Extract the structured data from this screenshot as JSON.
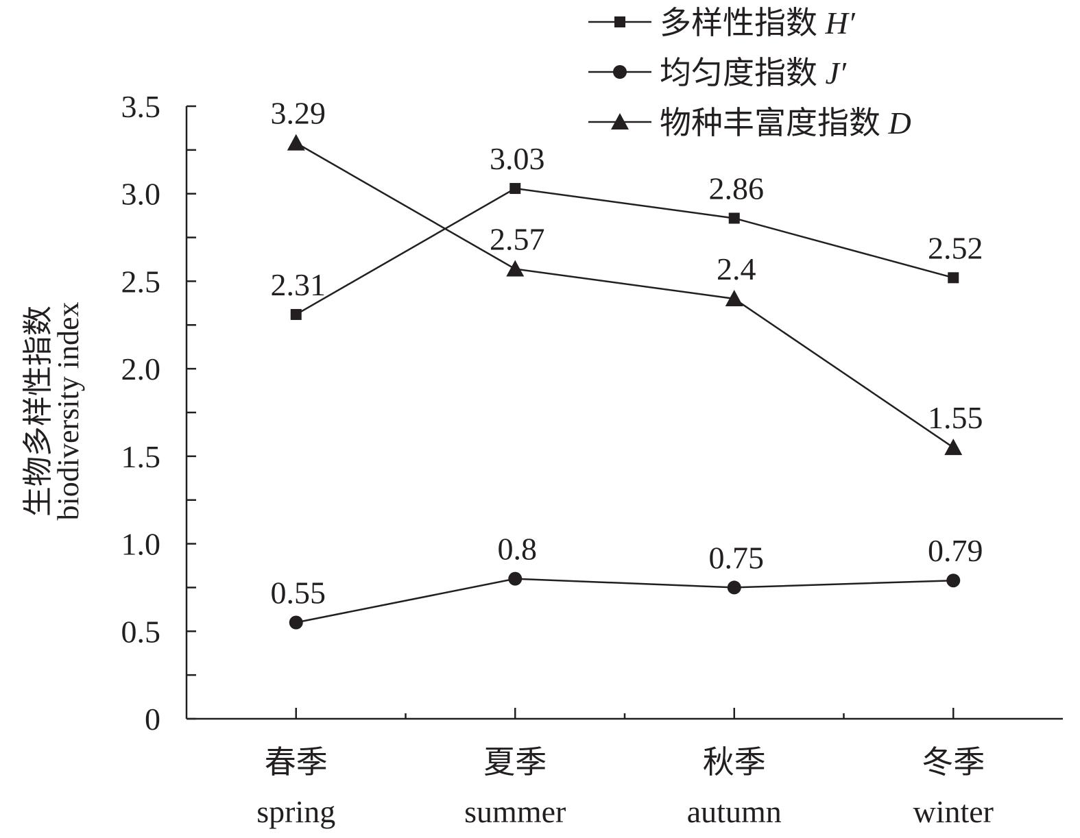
{
  "chart_data": {
    "type": "line",
    "categories": [
      {
        "zh": "春季",
        "en": "spring"
      },
      {
        "zh": "夏季",
        "en": "summer"
      },
      {
        "zh": "秋季",
        "en": "autumn"
      },
      {
        "zh": "冬季",
        "en": "winter"
      }
    ],
    "series": [
      {
        "name": "多样性指数",
        "symbol": "H′",
        "marker": "square",
        "values": [
          2.31,
          3.03,
          2.86,
          2.52
        ],
        "value_labels": [
          "2.31",
          "3.03",
          "2.86",
          "2.52"
        ]
      },
      {
        "name": "均匀度指数",
        "symbol": "J′",
        "marker": "circle",
        "values": [
          0.55,
          0.8,
          0.75,
          0.79
        ],
        "value_labels": [
          "0.55",
          "0.8",
          "0.75",
          "0.79"
        ]
      },
      {
        "name": "物种丰富度指数",
        "symbol": "D",
        "marker": "triangle",
        "values": [
          3.29,
          2.57,
          2.4,
          1.55
        ],
        "value_labels": [
          "3.29",
          "2.57",
          "2.4",
          "1.55"
        ]
      }
    ],
    "ylabel_zh": "生物多样性指数",
    "ylabel_en": "biodiversity index",
    "xlabel": "",
    "title": "",
    "ylim": [
      0,
      3.5
    ],
    "yticks": [
      {
        "value": 0,
        "label": "0"
      },
      {
        "value": 0.5,
        "label": "0.5"
      },
      {
        "value": 1.0,
        "label": "1.0"
      },
      {
        "value": 1.5,
        "label": "1.5"
      },
      {
        "value": 2.0,
        "label": "2.0"
      },
      {
        "value": 2.5,
        "label": "2.5"
      },
      {
        "value": 3.0,
        "label": "3.0"
      },
      {
        "value": 3.5,
        "label": "3.5"
      }
    ],
    "grid": false,
    "legend_position": "top-right",
    "color": "#231f20"
  }
}
